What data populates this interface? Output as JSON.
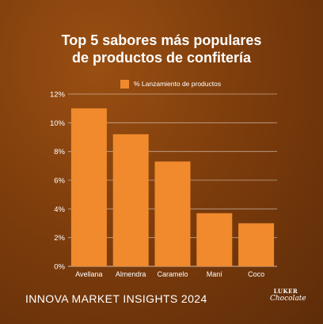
{
  "title_line1": "Top 5 sabores más populares",
  "title_line2": "de productos de confitería",
  "footer": "INNOVA MARKET INSIGHTS 2024",
  "logo": {
    "line1": "LUKER",
    "line2": "Chocolate"
  },
  "colors": {
    "bar": "#f08a2c",
    "background": "#7e3d0c",
    "grid": "#ffffff"
  },
  "chart_data": {
    "type": "bar",
    "title": "Top 5 sabores más populares de productos de confitería",
    "categories": [
      "Avellana",
      "Almendra",
      "Caramelo",
      "Maní",
      "Coco"
    ],
    "series": [
      {
        "name": "% Lanzamiento de productos",
        "values": [
          11.0,
          9.2,
          7.3,
          3.7,
          3.0
        ]
      }
    ],
    "y_ticks": [
      "0%",
      "2%",
      "4%",
      "6%",
      "8%",
      "10%",
      "12%"
    ],
    "ylim": [
      0,
      12
    ],
    "grid": true,
    "legend": "top-center"
  }
}
